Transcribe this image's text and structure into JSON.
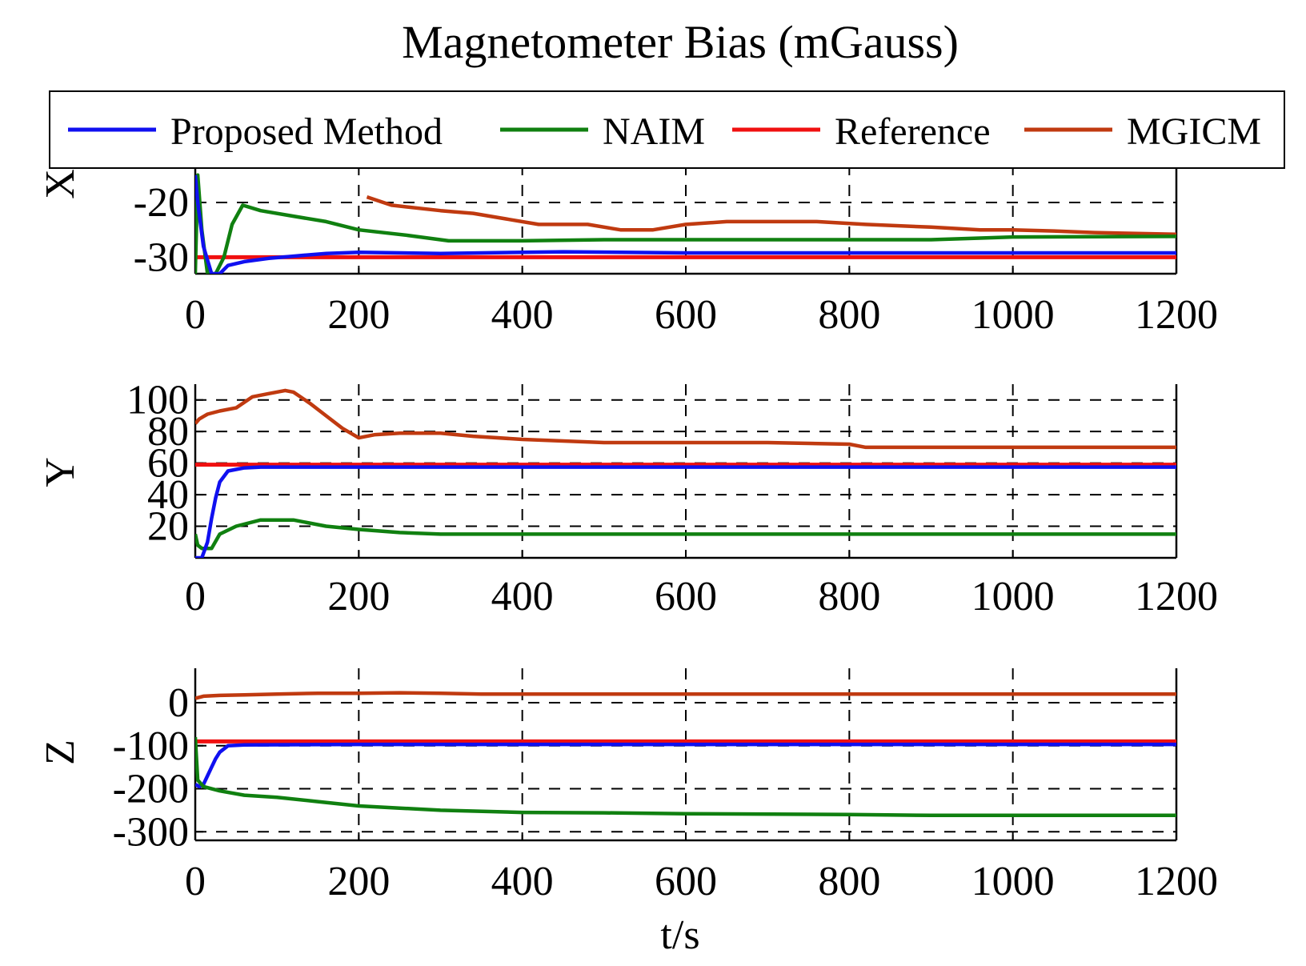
{
  "chart_data": {
    "type": "line",
    "title": "Magnetometer Bias (mGauss)",
    "xlabel": "t/s",
    "legend": {
      "position": "top",
      "entries": [
        "Proposed Method",
        "NAIM",
        "Reference",
        "MGICM"
      ]
    },
    "colors": {
      "Proposed Method": "#1010f0",
      "NAIM": "#108010",
      "Reference": "#f01010",
      "MGICM": "#c03a10"
    },
    "xlim": [
      0,
      1200
    ],
    "xticks": [
      0,
      200,
      400,
      600,
      800,
      1000,
      1200
    ],
    "grid": "dashed",
    "panels": [
      {
        "ylabel": "X",
        "ylim": [
          -33,
          -13
        ],
        "yticks": [
          -20,
          -30
        ],
        "ytick_labels": [
          "-20",
          "-30"
        ],
        "series": [
          {
            "name": "Reference",
            "x": [
              0,
              1200
            ],
            "y": [
              -30,
              -30
            ]
          },
          {
            "name": "MGICM",
            "x": [
              210,
              240,
              300,
              340,
              380,
              420,
              480,
              520,
              560,
              600,
              650,
              700,
              760,
              820,
              900,
              960,
              1000,
              1050,
              1100,
              1200
            ],
            "y": [
              -19,
              -20.5,
              -21.5,
              -22,
              -23,
              -24,
              -24,
              -25,
              -25,
              -24,
              -23.5,
              -23.5,
              -23.5,
              -24,
              -24.5,
              -25,
              -25,
              -25.2,
              -25.5,
              -25.8
            ]
          },
          {
            "name": "NAIM",
            "x": [
              0,
              3,
              8,
              15,
              25,
              35,
              45,
              58,
              80,
              120,
              160,
              200,
              260,
              310,
              400,
              500,
              600,
              700,
              800,
              900,
              960,
              1000,
              1200
            ],
            "y": [
              -33,
              -15,
              -25,
              -33,
              -33,
              -30,
              -24,
              -20.5,
              -21.5,
              -22.5,
              -23.5,
              -25,
              -26,
              -27,
              -27,
              -26.8,
              -26.8,
              -26.8,
              -26.8,
              -26.8,
              -26.5,
              -26.3,
              -26.2
            ]
          },
          {
            "name": "Proposed Method",
            "x": [
              0,
              3,
              10,
              20,
              30,
              40,
              60,
              90,
              120,
              160,
              200,
              300,
              450,
              600,
              800,
              1000,
              1200
            ],
            "y": [
              -15,
              -20,
              -28,
              -33,
              -33,
              -31.5,
              -30.8,
              -30.2,
              -29.8,
              -29.3,
              -29.1,
              -29.3,
              -29,
              -29.2,
              -29.2,
              -29.2,
              -29.2
            ]
          }
        ]
      },
      {
        "ylabel": "Y",
        "ylim": [
          0,
          110
        ],
        "yticks": [
          100,
          80,
          60,
          40,
          20
        ],
        "ytick_labels": [
          "100",
          "80",
          "60",
          "40",
          "20"
        ],
        "series": [
          {
            "name": "MGICM",
            "x": [
              0,
              5,
              15,
              30,
              50,
              70,
              90,
              110,
              120,
              140,
              160,
              180,
              200,
              220,
              250,
              300,
              340,
              400,
              500,
              600,
              700,
              800,
              820,
              900,
              1000,
              1100,
              1200
            ],
            "y": [
              85,
              88,
              91,
              93,
              95,
              102,
              104,
              106,
              105,
              98,
              90,
              82,
              76,
              78,
              79,
              79,
              77,
              75,
              73,
              73,
              73,
              72,
              70,
              70,
              70,
              70,
              70
            ]
          },
          {
            "name": "NAIM",
            "x": [
              0,
              3,
              8,
              20,
              30,
              50,
              80,
              120,
              160,
              200,
              250,
              300,
              400,
              600,
              800,
              1000,
              1200
            ],
            "y": [
              15,
              8,
              6,
              6,
              15,
              20,
              24,
              24,
              20,
              18,
              16,
              15,
              15,
              15,
              15,
              15,
              15
            ]
          },
          {
            "name": "Reference",
            "x": [
              0,
              1200
            ],
            "y": [
              59,
              59
            ]
          },
          {
            "name": "Proposed Method",
            "x": [
              0,
              8,
              15,
              20,
              25,
              30,
              40,
              60,
              80,
              200,
              500,
              1200
            ],
            "y": [
              0,
              0,
              10,
              25,
              38,
              48,
              55,
              57,
              57.5,
              57.5,
              57.5,
              57.5
            ]
          }
        ]
      },
      {
        "ylabel": "Z",
        "ylim": [
          -320,
          80
        ],
        "yticks": [
          0,
          -100,
          -200,
          -300
        ],
        "ytick_labels": [
          "0",
          "-100",
          "-200",
          "-300"
        ],
        "series": [
          {
            "name": "MGICM",
            "x": [
              0,
              10,
              30,
              60,
              100,
              150,
              200,
              250,
              300,
              350,
              400,
              450,
              500,
              700,
              900,
              1100,
              1200
            ],
            "y": [
              10,
              15,
              17,
              18,
              20,
              22,
              22,
              23,
              22,
              20,
              20,
              20,
              20,
              20,
              20,
              20,
              20
            ]
          },
          {
            "name": "Reference",
            "x": [
              0,
              1200
            ],
            "y": [
              -90,
              -90
            ]
          },
          {
            "name": "Proposed Method",
            "x": [
              0,
              5,
              10,
              15,
              20,
              25,
              30,
              40,
              60,
              200,
              600,
              900,
              1200
            ],
            "y": [
              -190,
              -195,
              -190,
              -170,
              -150,
              -130,
              -115,
              -100,
              -98,
              -97,
              -97,
              -97,
              -97
            ]
          },
          {
            "name": "NAIM",
            "x": [
              0,
              3,
              10,
              30,
              60,
              100,
              150,
              200,
              250,
              300,
              400,
              500,
              600,
              800,
              900,
              1000,
              1200
            ],
            "y": [
              -80,
              -180,
              -195,
              -205,
              -215,
              -220,
              -230,
              -240,
              -245,
              -250,
              -255,
              -256,
              -258,
              -260,
              -262,
              -262,
              -262
            ]
          }
        ]
      }
    ]
  }
}
